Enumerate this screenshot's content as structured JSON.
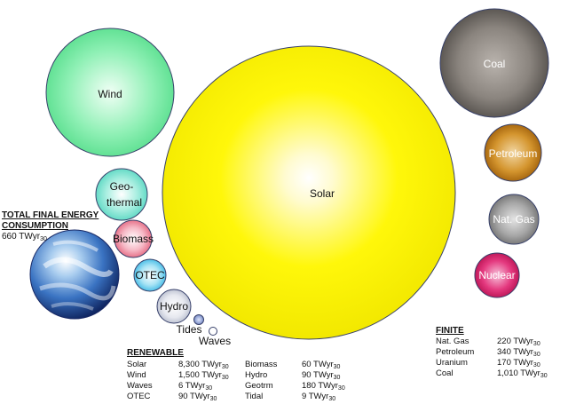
{
  "bubbles": {
    "wind": "Wind",
    "geothermal_1": "Geo-",
    "geothermal_2": "thermal",
    "biomass": "Biomass",
    "otec": "OTEC",
    "hydro": "Hydro",
    "tides": "Tides",
    "waves": "Waves",
    "solar": "Solar",
    "coal": "Coal",
    "petroleum": "Petroleum",
    "natgas": "Nat. Gas",
    "nuclear": "Nuclear"
  },
  "consumption": {
    "title_1": "TOTAL FINAL ENERGY",
    "title_2": "CONSUMPTION",
    "value": "660 TWyr",
    "sub": "30"
  },
  "renewable": {
    "title": "RENEWABLE",
    "unit_sub": "30",
    "rows": [
      [
        "Solar",
        "8,300 TWyr",
        "Biomass",
        "60 TWyr"
      ],
      [
        "Wind",
        "1,500 TWyr",
        "Hydro",
        "90 TWyr"
      ],
      [
        "Waves",
        "6 TWyr",
        "Geotrm",
        "180 TWyr"
      ],
      [
        "OTEC",
        "90 TWyr",
        "Tidal",
        "9 TWyr"
      ]
    ]
  },
  "finite": {
    "title": "FINITE",
    "unit_sub": "30",
    "rows": [
      [
        "Nat. Gas",
        "220 TWyr"
      ],
      [
        "Petroleum",
        "340 TWyr"
      ],
      [
        "Uranium",
        "170 TWyr"
      ],
      [
        "Coal",
        "1,010 TWyr"
      ]
    ]
  }
}
